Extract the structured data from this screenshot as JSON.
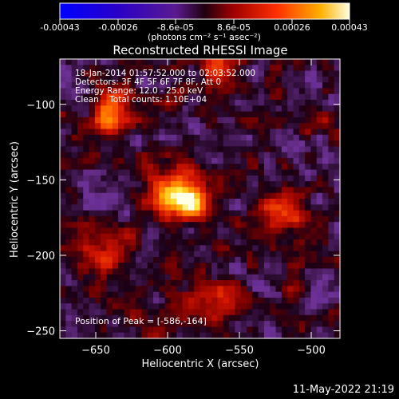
{
  "colorbar": {
    "labels_above": [
      "-0.00043",
      "-0.00026",
      "-8.6e-05",
      "8.6e-05",
      "0.00026",
      "0.00043"
    ],
    "unit_label": "(photons cm⁻² s⁻¹ asec⁻²)",
    "range": [
      -0.00043,
      0.00043
    ]
  },
  "chart_data": {
    "type": "heatmap",
    "title": "Reconstructed RHESSI Image",
    "xlabel": "Heliocentric X (arcsec)",
    "ylabel": "Heliocentric Y (arcsec)",
    "xlim": [
      -675,
      -480
    ],
    "ylim": [
      -255,
      -70
    ],
    "xticks": [
      -650,
      -600,
      -550,
      -500
    ],
    "yticks": [
      -100,
      -150,
      -200,
      -250
    ],
    "tick_labels_x": [
      "−650",
      "−600",
      "−550",
      "−500"
    ],
    "tick_labels_y": [
      "−100",
      "−150",
      "−200",
      "−250"
    ],
    "peak": [
      -586,
      -164
    ],
    "sources": [
      {
        "x": -586,
        "y": -164,
        "amp": 1.0,
        "sx": 10,
        "sy": 8
      },
      {
        "x": -600,
        "y": -155,
        "amp": 0.55,
        "sx": 12,
        "sy": 10
      },
      {
        "x": -640,
        "y": -108,
        "amp": 0.7,
        "sx": 9,
        "sy": 12
      },
      {
        "x": -565,
        "y": -75,
        "amp": 0.6,
        "sx": 8,
        "sy": 8
      },
      {
        "x": -520,
        "y": -175,
        "amp": 0.4,
        "sx": 14,
        "sy": 12
      },
      {
        "x": -645,
        "y": -195,
        "amp": 0.35,
        "sx": 14,
        "sy": 12
      },
      {
        "x": -570,
        "y": -230,
        "amp": 0.35,
        "sx": 18,
        "sy": 10
      }
    ]
  },
  "info_lines": [
    "18-Jan-2014 01:57:52.000 to 02:03:52.000",
    "Detectors: 3F 4F 5F 6F 7F 8F, Att 0",
    "Energy Range: 12.0 - 25.0 keV",
    "Clean    Total counts: 1.10E+04"
  ],
  "peak_label": "Position of Peak = [-586,-164]",
  "footer": "11-May-2022 21:19"
}
